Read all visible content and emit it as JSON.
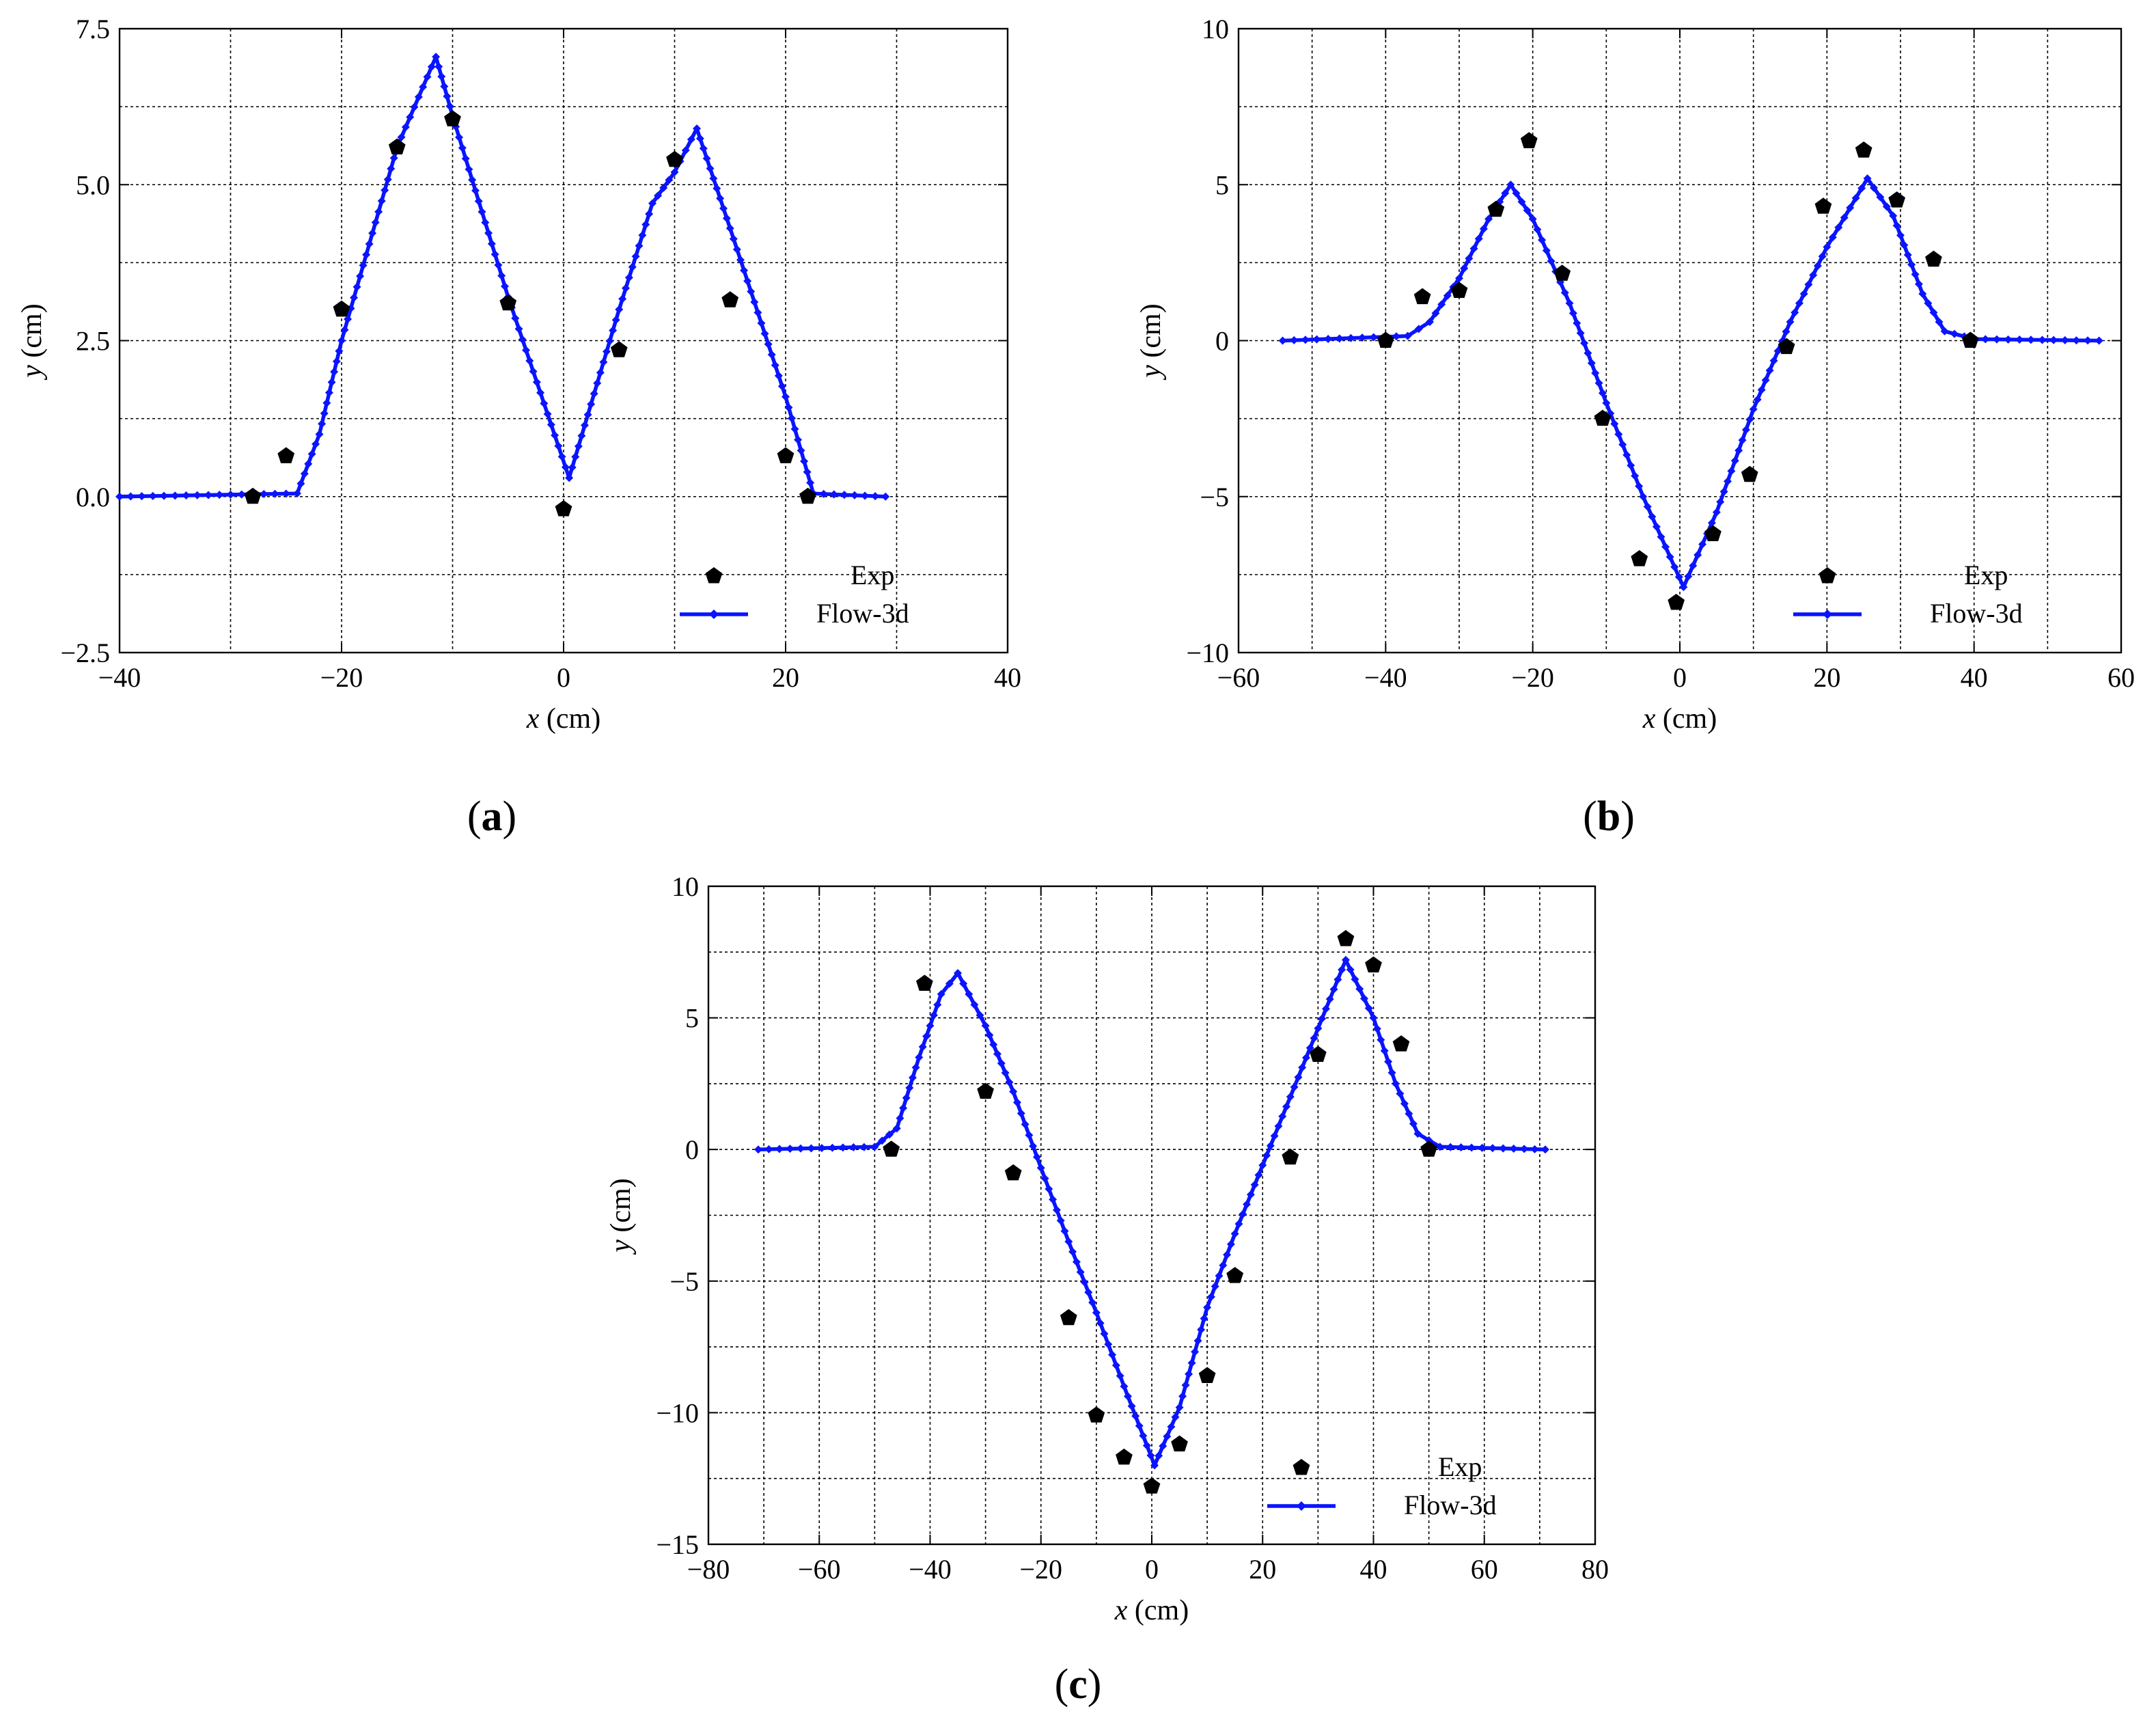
{
  "colors": {
    "sim_line": "#0a14ff",
    "exp_marker": "#000000",
    "grid": "#000000"
  },
  "legend": {
    "exp_label": "Exp",
    "sim_label": "Flow-3d"
  },
  "chart_data": [
    {
      "type": "scatter",
      "panel_label": "a",
      "xlabel_var": "x",
      "xlabel_unit": " (cm)",
      "ylabel_var": "y",
      "ylabel_unit": " (cm)",
      "xlim": [
        -40,
        40
      ],
      "ylim": [
        -2.5,
        7.5
      ],
      "xticks": [
        -40,
        -20,
        0,
        20,
        40
      ],
      "xtick_labels": [
        "−40",
        "−20",
        "0",
        "20",
        "40"
      ],
      "yticks": [
        -2.5,
        0,
        2.5,
        5,
        7.5
      ],
      "ytick_labels": [
        "−2.5",
        "0.0",
        "2.5",
        "5.0",
        "7.5"
      ],
      "xgrid": [
        -40,
        -30,
        -20,
        -10,
        0,
        10,
        20,
        30,
        40
      ],
      "ygrid": [
        -2.5,
        -1.25,
        0,
        1.25,
        2.5,
        3.75,
        5,
        6.25,
        7.5
      ],
      "grid": true,
      "legend_position": "bottom-right",
      "series": [
        {
          "name": "Exp",
          "kind": "marker",
          "x": [
            -28,
            -25,
            -20,
            -15,
            -10,
            -5,
            0,
            5,
            10,
            15,
            20,
            22
          ],
          "y": [
            0,
            0.65,
            3.0,
            5.6,
            6.05,
            3.1,
            -0.2,
            2.35,
            5.4,
            3.15,
            0.65,
            0.0
          ]
        },
        {
          "name": "Flow-3d",
          "kind": "line",
          "x": [
            -40,
            -24,
            -22,
            -20,
            -15,
            -11.5,
            -10,
            -5,
            0.5,
            5,
            8,
            10,
            12,
            15,
            20,
            22.5,
            29
          ],
          "y": [
            0,
            0.05,
            1.0,
            2.5,
            5.6,
            7.05,
            6.1,
            3.2,
            0.3,
            3.0,
            4.7,
            5.2,
            5.9,
            4.3,
            1.6,
            0.05,
            0
          ]
        }
      ]
    },
    {
      "type": "scatter",
      "panel_label": "b",
      "xlabel_var": "x",
      "xlabel_unit": " (cm)",
      "ylabel_var": "y",
      "ylabel_unit": " (cm)",
      "xlim": [
        -60,
        60
      ],
      "ylim": [
        -10,
        10
      ],
      "xticks": [
        -60,
        -40,
        -20,
        0,
        20,
        40,
        60
      ],
      "xtick_labels": [
        "−60",
        "−40",
        "−20",
        "0",
        "20",
        "40",
        "60"
      ],
      "yticks": [
        -10,
        -5,
        0,
        5,
        10
      ],
      "ytick_labels": [
        "−10",
        "−5",
        "0",
        "5",
        "10"
      ],
      "xgrid": [
        -60,
        -50,
        -40,
        -30,
        -20,
        -10,
        0,
        10,
        20,
        30,
        40,
        50,
        60
      ],
      "ygrid": [
        -10,
        -7.5,
        -5,
        -2.5,
        0,
        2.5,
        5,
        7.5,
        10
      ],
      "grid": true,
      "legend_position": "bottom-right",
      "series": [
        {
          "name": "Exp",
          "kind": "marker",
          "x": [
            -40,
            -35,
            -30,
            -25,
            -20.5,
            -16,
            -10.5,
            -5.5,
            -0.5,
            4.5,
            9.5,
            14.5,
            19.5,
            25,
            29.5,
            34.5,
            39.5
          ],
          "y": [
            0,
            1.4,
            1.6,
            4.2,
            6.4,
            2.15,
            -2.5,
            -7.0,
            -8.4,
            -6.2,
            -4.3,
            -0.2,
            4.3,
            6.1,
            4.5,
            2.6,
            0
          ]
        },
        {
          "name": "Flow-3d",
          "kind": "line",
          "x": [
            -54,
            -37,
            -34,
            -30,
            -26,
            -23,
            -20,
            -15,
            -10,
            -5,
            0.5,
            5,
            10,
            15,
            20,
            25.5,
            29,
            33,
            36,
            40,
            57
          ],
          "y": [
            0,
            0.15,
            0.6,
            2.0,
            3.9,
            5.0,
            3.9,
            1.2,
            -2.0,
            -5.0,
            -7.9,
            -5.5,
            -2.2,
            0.6,
            3.0,
            5.2,
            4.0,
            1.5,
            0.3,
            0.05,
            0
          ]
        }
      ]
    },
    {
      "type": "scatter",
      "panel_label": "c",
      "xlabel_var": "x",
      "xlabel_unit": " (cm)",
      "ylabel_var": "y",
      "ylabel_unit": " (cm)",
      "xlim": [
        -80,
        80
      ],
      "ylim": [
        -15,
        10
      ],
      "xticks": [
        -80,
        -60,
        -40,
        -20,
        0,
        20,
        40,
        60,
        80
      ],
      "xtick_labels": [
        "−80",
        "−60",
        "−40",
        "−20",
        "0",
        "20",
        "40",
        "60",
        "80"
      ],
      "yticks": [
        -15,
        -10,
        -5,
        0,
        5,
        10
      ],
      "ytick_labels": [
        "−15",
        "−10",
        "−5",
        "0",
        "5",
        "10"
      ],
      "xgrid": [
        -80,
        -70,
        -60,
        -50,
        -40,
        -30,
        -20,
        -10,
        0,
        10,
        20,
        30,
        40,
        50,
        60,
        70,
        80
      ],
      "ygrid": [
        -15,
        -12.5,
        -10,
        -7.5,
        -5,
        -2.5,
        0,
        2.5,
        5,
        7.5,
        10
      ],
      "grid": true,
      "legend_position": "bottom-right",
      "series": [
        {
          "name": "Exp",
          "kind": "marker",
          "x": [
            -47,
            -41,
            -30,
            -25,
            -15,
            -10,
            -5,
            0,
            5,
            10,
            15,
            25,
            30,
            35,
            40,
            45,
            50
          ],
          "y": [
            0,
            6.3,
            2.2,
            -0.9,
            -6.4,
            -10.1,
            -11.7,
            -12.8,
            -11.2,
            -8.6,
            -4.8,
            -0.3,
            3.6,
            8.0,
            7.0,
            4.0,
            0
          ]
        },
        {
          "name": "Flow-3d",
          "kind": "line",
          "x": [
            -71,
            -50,
            -46,
            -42,
            -38,
            -35,
            -30,
            -25,
            -20,
            -15,
            -10,
            -5,
            0.5,
            5,
            10,
            15,
            20,
            25,
            30,
            35,
            40,
            44,
            48,
            52,
            71
          ],
          "y": [
            0,
            0.1,
            0.8,
            3.5,
            5.9,
            6.7,
            4.7,
            2.2,
            -0.7,
            -3.5,
            -6.2,
            -9.0,
            -12.0,
            -9.8,
            -6.0,
            -3.2,
            -0.6,
            2.0,
            4.6,
            7.2,
            5.0,
            2.5,
            0.6,
            0.1,
            0
          ]
        }
      ]
    }
  ]
}
